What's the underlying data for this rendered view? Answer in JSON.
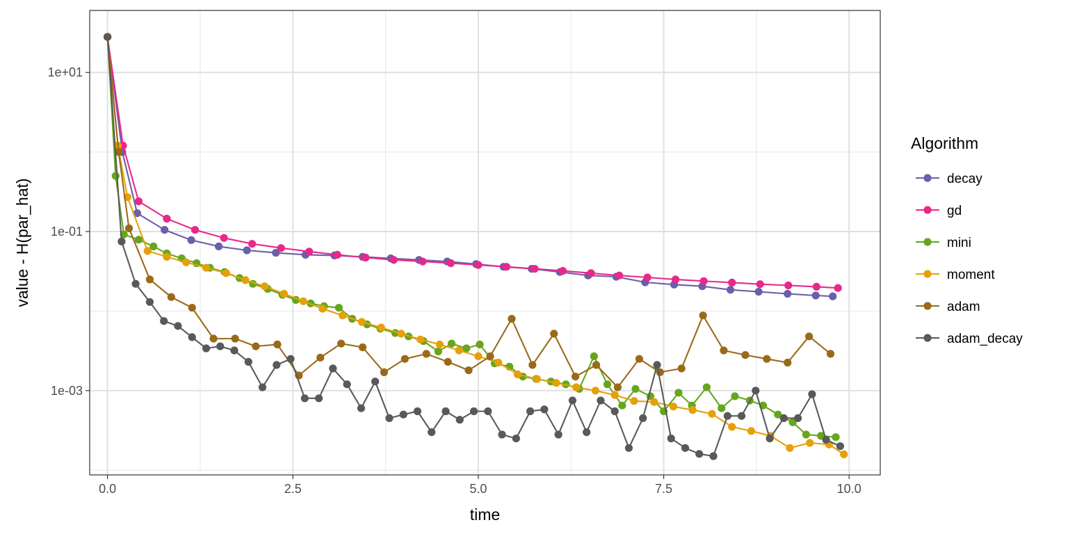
{
  "chart_data": {
    "type": "line",
    "xlabel": "time",
    "ylabel": "value - H(par_hat)",
    "xlim": [
      -0.24,
      10.42
    ],
    "ylim_log10": [
      -4.06,
      1.78
    ],
    "y_scale": "log10",
    "x_ticks": [
      {
        "value": 0.0,
        "label": "0.0"
      },
      {
        "value": 2.5,
        "label": "2.5"
      },
      {
        "value": 5.0,
        "label": "5.0"
      },
      {
        "value": 7.5,
        "label": "7.5"
      },
      {
        "value": 10.0,
        "label": "10.0"
      }
    ],
    "y_ticks": [
      {
        "value": 10,
        "label": "1e+01"
      },
      {
        "value": 0.1,
        "label": "1e-01"
      },
      {
        "value": 0.001,
        "label": "1e-03"
      }
    ],
    "grid": true,
    "legend": {
      "title": "Algorithm",
      "position": "right"
    },
    "series": [
      {
        "name": "decay",
        "color": "#6a5fa8",
        "x": [
          0,
          0.2,
          0.4,
          0.77,
          1.13,
          1.5,
          1.88,
          2.27,
          2.67,
          3.06,
          3.44,
          3.82,
          4.2,
          4.58,
          4.97,
          5.34,
          5.72,
          6.1,
          6.48,
          6.86,
          7.25,
          7.64,
          8.02,
          8.4,
          8.78,
          9.17,
          9.55,
          9.78
        ],
        "y": [
          28,
          1.0,
          0.17,
          0.105,
          0.078,
          0.065,
          0.058,
          0.054,
          0.051,
          0.05,
          0.048,
          0.046,
          0.044,
          0.042,
          0.039,
          0.036,
          0.034,
          0.031,
          0.028,
          0.027,
          0.023,
          0.0215,
          0.0205,
          0.0185,
          0.0175,
          0.0165,
          0.0157,
          0.0153
        ]
      },
      {
        "name": "gd",
        "color": "#e7298a",
        "x": [
          0,
          0.21,
          0.42,
          0.8,
          1.18,
          1.57,
          1.95,
          2.34,
          2.72,
          3.1,
          3.48,
          3.86,
          4.25,
          4.63,
          5.0,
          5.38,
          5.76,
          6.14,
          6.52,
          6.9,
          7.28,
          7.66,
          8.04,
          8.42,
          8.8,
          9.18,
          9.56,
          9.85
        ],
        "y": [
          28,
          1.2,
          0.24,
          0.145,
          0.105,
          0.083,
          0.07,
          0.062,
          0.056,
          0.051,
          0.047,
          0.044,
          0.042,
          0.04,
          0.038,
          0.036,
          0.034,
          0.032,
          0.03,
          0.028,
          0.0265,
          0.025,
          0.0238,
          0.0228,
          0.0218,
          0.021,
          0.0202,
          0.0195
        ]
      },
      {
        "name": "mini",
        "color": "#66a61e",
        "x": [
          0,
          0.11,
          0.22,
          0.42,
          0.62,
          0.8,
          1.0,
          1.2,
          1.38,
          1.58,
          1.78,
          1.96,
          2.16,
          2.36,
          2.54,
          2.74,
          2.92,
          3.12,
          3.3,
          3.5,
          3.68,
          3.88,
          4.06,
          4.26,
          4.46,
          4.64,
          4.84,
          5.02,
          5.22,
          5.42,
          5.6,
          5.78,
          5.98,
          6.18,
          6.36,
          6.56,
          6.74,
          6.94,
          7.12,
          7.32,
          7.5,
          7.7,
          7.88,
          8.08,
          8.28,
          8.46,
          8.66,
          8.84,
          9.04,
          9.24,
          9.42,
          9.62,
          9.82
        ],
        "y": [
          28,
          0.5,
          0.092,
          0.079,
          0.065,
          0.053,
          0.046,
          0.04,
          0.035,
          0.031,
          0.026,
          0.022,
          0.019,
          0.016,
          0.0138,
          0.0125,
          0.0115,
          0.011,
          0.008,
          0.0068,
          0.006,
          0.0053,
          0.0048,
          0.0042,
          0.0031,
          0.0039,
          0.0034,
          0.0038,
          0.0022,
          0.002,
          0.0015,
          0.0014,
          0.0013,
          0.0012,
          0.00105,
          0.0027,
          0.0012,
          0.00065,
          0.00105,
          0.00085,
          0.00055,
          0.00094,
          0.00065,
          0.0011,
          0.0006,
          0.00085,
          0.00075,
          0.00065,
          0.0005,
          0.0004,
          0.00028,
          0.00027,
          0.00026
        ]
      },
      {
        "name": "moment",
        "color": "#e6a00a",
        "x": [
          0,
          0.14,
          0.27,
          0.54,
          0.8,
          1.06,
          1.33,
          1.6,
          1.86,
          2.12,
          2.38,
          2.64,
          2.9,
          3.17,
          3.43,
          3.69,
          3.96,
          4.22,
          4.48,
          4.74,
          5.0,
          5.27,
          5.53,
          5.79,
          6.05,
          6.32,
          6.58,
          6.84,
          7.1,
          7.37,
          7.63,
          7.89,
          8.15,
          8.42,
          8.68,
          8.94,
          9.2,
          9.47,
          9.73,
          9.93
        ],
        "y": [
          28,
          1.2,
          0.27,
          0.057,
          0.048,
          0.041,
          0.035,
          0.03,
          0.0245,
          0.0205,
          0.0165,
          0.0133,
          0.0107,
          0.0088,
          0.0073,
          0.0062,
          0.0052,
          0.0044,
          0.0038,
          0.0032,
          0.0027,
          0.00225,
          0.0016,
          0.0014,
          0.00125,
          0.0011,
          0.001,
          0.00088,
          0.00074,
          0.00072,
          0.00063,
          0.00057,
          0.00051,
          0.00035,
          0.00031,
          0.00027,
          0.00019,
          0.00022,
          0.00021,
          0.000158
        ]
      },
      {
        "name": "adam",
        "color": "#9a6a1a",
        "x": [
          0,
          0.15,
          0.29,
          0.57,
          0.86,
          1.14,
          1.43,
          1.72,
          2.0,
          2.29,
          2.58,
          2.87,
          3.15,
          3.44,
          3.73,
          4.01,
          4.3,
          4.59,
          4.87,
          5.16,
          5.45,
          5.73,
          6.02,
          6.31,
          6.59,
          6.88,
          7.17,
          7.45,
          7.74,
          8.03,
          8.31,
          8.6,
          8.89,
          9.17,
          9.46,
          9.75
        ],
        "y": [
          28,
          1.0,
          0.11,
          0.025,
          0.015,
          0.011,
          0.0045,
          0.0045,
          0.0036,
          0.0038,
          0.00155,
          0.0026,
          0.0039,
          0.0035,
          0.0017,
          0.0025,
          0.0029,
          0.0023,
          0.0018,
          0.0027,
          0.008,
          0.0021,
          0.0052,
          0.0015,
          0.0021,
          0.0011,
          0.0025,
          0.0017,
          0.0019,
          0.0088,
          0.0032,
          0.0028,
          0.0025,
          0.00225,
          0.0048,
          0.0029
        ]
      },
      {
        "name": "adam_decay",
        "color": "#595959",
        "x": [
          0,
          0.19,
          0.38,
          0.57,
          0.76,
          0.95,
          1.14,
          1.33,
          1.52,
          1.71,
          1.9,
          2.09,
          2.28,
          2.47,
          2.66,
          2.85,
          3.04,
          3.23,
          3.42,
          3.61,
          3.8,
          3.99,
          4.18,
          4.37,
          4.56,
          4.75,
          4.94,
          5.13,
          5.32,
          5.51,
          5.7,
          5.89,
          6.08,
          6.27,
          6.46,
          6.65,
          6.84,
          7.03,
          7.22,
          7.41,
          7.6,
          7.79,
          7.98,
          8.17,
          8.36,
          8.55,
          8.74,
          8.93,
          9.12,
          9.31,
          9.5,
          9.69,
          9.88
        ],
        "y": [
          28,
          0.075,
          0.022,
          0.013,
          0.0075,
          0.0065,
          0.0047,
          0.0034,
          0.0036,
          0.0032,
          0.0023,
          0.0011,
          0.0021,
          0.0025,
          0.0008,
          0.0008,
          0.0019,
          0.0012,
          0.0006,
          0.0013,
          0.00045,
          0.0005,
          0.00055,
          0.0003,
          0.00055,
          0.00043,
          0.00055,
          0.00055,
          0.00028,
          0.00025,
          0.00055,
          0.00058,
          0.00028,
          0.00075,
          0.0003,
          0.00075,
          0.00055,
          0.00019,
          0.00045,
          0.0021,
          0.00025,
          0.00019,
          0.00016,
          0.00015,
          0.00048,
          0.00048,
          0.001,
          0.00025,
          0.00045,
          0.00045,
          0.0009,
          0.00024,
          0.0002
        ]
      }
    ]
  }
}
